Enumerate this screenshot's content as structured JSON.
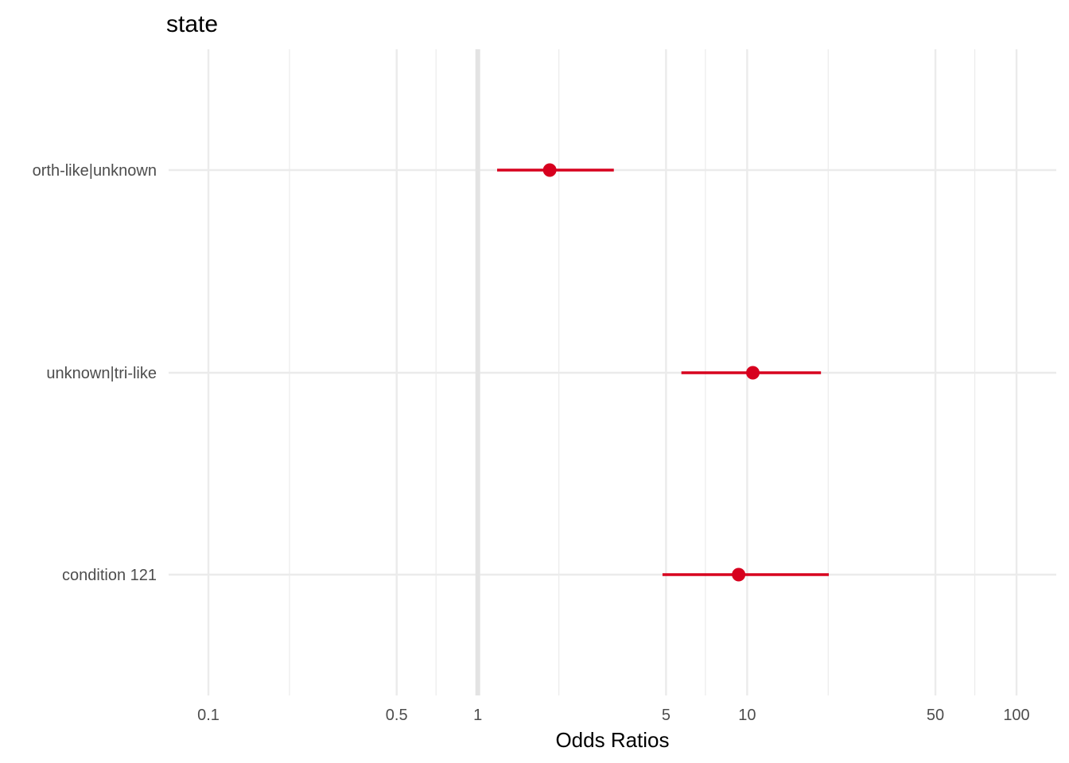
{
  "chart_data": {
    "type": "scatter",
    "subtype": "forest-plot",
    "title": "state",
    "xlabel": "Odds Ratios",
    "ylabel": "",
    "x_scale": "log10",
    "xlim": [
      0.1,
      100
    ],
    "x_ticks": [
      0.1,
      0.5,
      1,
      5,
      10,
      50,
      100
    ],
    "x_tick_labels": [
      "0.1",
      "0.5",
      "1",
      "5",
      "10",
      "50",
      "100"
    ],
    "x_minor_ticks": [
      0.2,
      0.7,
      2,
      7,
      20,
      70
    ],
    "reference_line": 1,
    "categories": [
      "orth-like|unknown",
      "unknown|tri-like",
      "condition 121"
    ],
    "estimates": [
      1.85,
      10.5,
      9.3
    ],
    "ci_low": [
      1.18,
      5.7,
      4.85
    ],
    "ci_high": [
      3.2,
      18.8,
      20.1
    ],
    "point_color": "#d7001e",
    "grid": true
  }
}
